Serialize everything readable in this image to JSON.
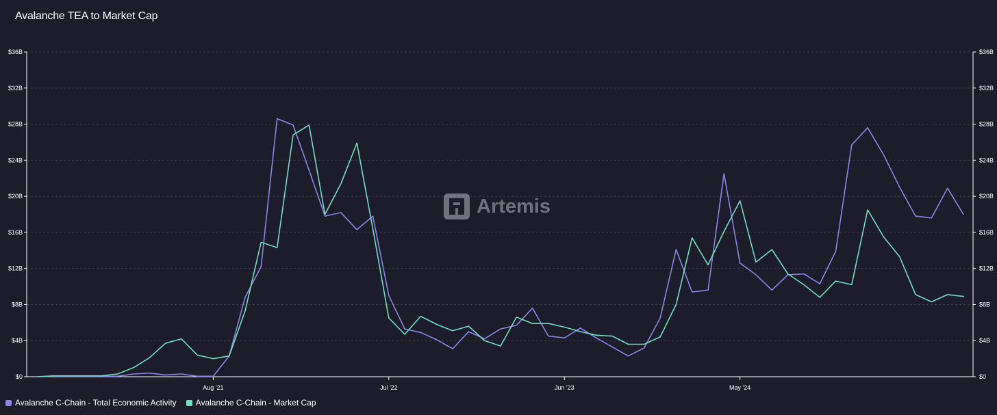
{
  "title": "Avalanche TEA to Market Cap",
  "watermark": "Artemis",
  "colors": {
    "background": "#1c1d29",
    "tea": "#8a86ec",
    "market_cap": "#6fe0c0",
    "grid": "#3a3c4c",
    "text": "#ffffff"
  },
  "legend": [
    {
      "label": "Avalanche C-Chain - Total Economic Activity",
      "color": "#8a86ec"
    },
    {
      "label": "Avalanche C-Chain - Market Cap",
      "color": "#6fe0c0"
    }
  ],
  "chart_data": {
    "type": "line",
    "title": "Avalanche TEA to Market Cap",
    "xlabel": "",
    "ylabel": "",
    "y_tick_labels": [
      "$0",
      "$4B",
      "$8B",
      "$12B",
      "$16B",
      "$20B",
      "$24B",
      "$28B",
      "$32B",
      "$36B"
    ],
    "y_tick_values": [
      0,
      4,
      8,
      12,
      16,
      20,
      24,
      28,
      32,
      36
    ],
    "x_ticks": [
      {
        "label": "Aug '21",
        "index": 11
      },
      {
        "label": "Jul '22",
        "index": 22
      },
      {
        "label": "Jun '23",
        "index": 33
      },
      {
        "label": "May '24",
        "index": 44
      }
    ],
    "ylim": [
      0,
      36
    ],
    "grid": true,
    "legend_position": "bottom-left",
    "point_count": 59,
    "series": [
      {
        "name": "Avalanche C-Chain - Total Economic Activity",
        "color": "#8a86ec",
        "values": [
          0,
          0.05,
          0.05,
          0.05,
          0.05,
          0.05,
          0.3,
          0.4,
          0.2,
          0.3,
          0.05,
          0.05,
          2.3,
          8.8,
          12.2,
          28.6,
          27.9,
          22.9,
          17.8,
          18.2,
          16.3,
          17.8,
          9.0,
          5.3,
          4.9,
          4.1,
          3.1,
          5.0,
          4.2,
          5.3,
          5.7,
          7.6,
          4.5,
          4.3,
          5.4,
          4.3,
          3.3,
          2.3,
          3.2,
          6.5,
          14.1,
          9.4,
          9.6,
          22.5,
          12.6,
          11.3,
          9.6,
          11.3,
          11.4,
          10.3,
          13.9,
          25.7,
          27.6,
          24.6,
          21.0,
          17.8,
          17.6,
          20.9,
          18.0
        ]
      },
      {
        "name": "Avalanche C-Chain - Market Cap",
        "color": "#6fe0c0",
        "values": [
          0,
          0.1,
          0.1,
          0.1,
          0.1,
          0.3,
          1.0,
          2.1,
          3.7,
          4.2,
          2.4,
          2.0,
          2.3,
          7.3,
          14.9,
          14.3,
          26.8,
          27.9,
          18.0,
          21.4,
          25.9,
          16.4,
          6.5,
          4.7,
          6.7,
          5.8,
          5.1,
          5.6,
          4.0,
          3.4,
          6.6,
          5.9,
          5.9,
          5.5,
          5.0,
          4.6,
          4.5,
          3.6,
          3.6,
          4.4,
          8.0,
          15.4,
          12.4,
          16.1,
          19.5,
          12.7,
          14.1,
          11.4,
          10.2,
          8.8,
          10.6,
          10.2,
          18.5,
          15.5,
          13.3,
          9.1,
          8.3,
          9.1,
          8.9
        ]
      }
    ]
  }
}
